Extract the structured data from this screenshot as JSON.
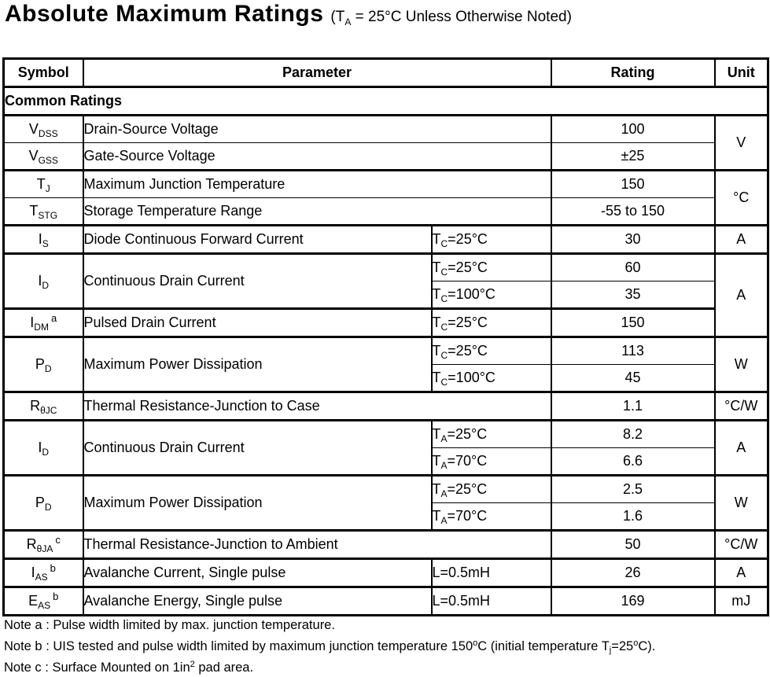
{
  "title": {
    "main": "Absolute Maximum Ratings",
    "note": [
      {
        "t": "(T"
      },
      {
        "sub": "A"
      },
      {
        "t": " = 25°C Unless Otherwise Noted)"
      }
    ]
  },
  "table": {
    "headers": {
      "symbol": "Symbol",
      "parameter": "Parameter",
      "rating": "Rating",
      "unit": "Unit"
    },
    "section": "Common Ratings",
    "rows": {
      "vdss": {
        "symbol": [
          {
            "t": "V"
          },
          {
            "sub": "DSS"
          }
        ],
        "parameter": "Drain-Source Voltage",
        "rating": "100",
        "unit": "V"
      },
      "vgss": {
        "symbol": [
          {
            "t": "V"
          },
          {
            "sub": "GSS"
          }
        ],
        "parameter": "Gate-Source Voltage",
        "rating": "±25"
      },
      "tj": {
        "symbol": [
          {
            "t": "T"
          },
          {
            "sub": "J"
          }
        ],
        "parameter": "Maximum Junction Temperature",
        "rating": "150",
        "unit": "°C"
      },
      "tstg": {
        "symbol": [
          {
            "t": "T"
          },
          {
            "sub": "STG"
          }
        ],
        "parameter": "Storage Temperature Range",
        "rating": "-55 to 150"
      },
      "is": {
        "symbol": [
          {
            "t": "I"
          },
          {
            "sub": "S"
          }
        ],
        "parameter": "Diode Continuous Forward Current",
        "condition": [
          {
            "t": "T"
          },
          {
            "sub": "C"
          },
          {
            "t": "=25°C"
          }
        ],
        "rating": "30",
        "unit": "A"
      },
      "id_tc25": {
        "symbol": [
          {
            "t": "I"
          },
          {
            "sub": "D"
          }
        ],
        "parameter": "Continuous Drain Current",
        "condition": [
          {
            "t": "T"
          },
          {
            "sub": "C"
          },
          {
            "t": "=25°C"
          }
        ],
        "rating": "60",
        "unit": "A"
      },
      "id_tc100": {
        "condition": [
          {
            "t": "T"
          },
          {
            "sub": "C"
          },
          {
            "t": "=100°C"
          }
        ],
        "rating": "35"
      },
      "idm": {
        "symbol": [
          {
            "t": "I"
          },
          {
            "sub": "DM"
          },
          {
            "sup": "a"
          }
        ],
        "parameter": "Pulsed Drain Current",
        "condition": [
          {
            "t": "T"
          },
          {
            "sub": "C"
          },
          {
            "t": "=25°C"
          }
        ],
        "rating": "150"
      },
      "pd_tc25": {
        "symbol": [
          {
            "t": "P"
          },
          {
            "sub": "D"
          }
        ],
        "parameter": "Maximum Power Dissipation",
        "condition": [
          {
            "t": "T"
          },
          {
            "sub": "C"
          },
          {
            "t": "=25°C"
          }
        ],
        "rating": "113",
        "unit": "W"
      },
      "pd_tc100": {
        "condition": [
          {
            "t": "T"
          },
          {
            "sub": "C"
          },
          {
            "t": "=100°C"
          }
        ],
        "rating": "45"
      },
      "rthjc": {
        "symbol": [
          {
            "t": "R"
          },
          {
            "sub": "θJC"
          }
        ],
        "parameter": "Thermal Resistance-Junction to Case",
        "rating": "1.1",
        "unit": "°C/W"
      },
      "id_ta25": {
        "symbol": [
          {
            "t": "I"
          },
          {
            "sub": "D"
          }
        ],
        "parameter": "Continuous Drain Current",
        "condition": [
          {
            "t": "T"
          },
          {
            "sub": "A"
          },
          {
            "t": "=25°C"
          }
        ],
        "rating": "8.2",
        "unit": "A"
      },
      "id_ta70": {
        "condition": [
          {
            "t": "T"
          },
          {
            "sub": "A"
          },
          {
            "t": "=70°C"
          }
        ],
        "rating": "6.6"
      },
      "pd_ta25": {
        "symbol": [
          {
            "t": "P"
          },
          {
            "sub": "D"
          }
        ],
        "parameter": "Maximum Power Dissipation",
        "condition": [
          {
            "t": "T"
          },
          {
            "sub": "A"
          },
          {
            "t": "=25°C"
          }
        ],
        "rating": "2.5",
        "unit": "W"
      },
      "pd_ta70": {
        "condition": [
          {
            "t": "T"
          },
          {
            "sub": "A"
          },
          {
            "t": "=70°C"
          }
        ],
        "rating": "1.6"
      },
      "rthja": {
        "symbol": [
          {
            "t": "R"
          },
          {
            "sub": "θJA"
          },
          {
            "sup": "c"
          }
        ],
        "parameter": "Thermal Resistance-Junction to Ambient",
        "rating": "50",
        "unit": "°C/W"
      },
      "ias": {
        "symbol": [
          {
            "t": "I"
          },
          {
            "sub": "AS"
          },
          {
            "sup": "b"
          }
        ],
        "parameter": "Avalanche Current, Single pulse",
        "condition": [
          {
            "t": "L=0.5mH"
          }
        ],
        "rating": "26",
        "unit": "A"
      },
      "eas": {
        "symbol": [
          {
            "t": "E"
          },
          {
            "sub": "AS"
          },
          {
            "sup": "b"
          }
        ],
        "parameter": "Avalanche Energy, Single pulse",
        "condition": [
          {
            "t": "L=0.5mH"
          }
        ],
        "rating": "169",
        "unit": "mJ"
      }
    }
  },
  "notes": {
    "a": [
      {
        "t": "Note a : Pulse width limited by max. junction temperature."
      }
    ],
    "b": [
      {
        "t": "Note b : UIS tested and pulse width limited by maximum junction temperature 150"
      },
      {
        "sup": "o"
      },
      {
        "t": "C (initial temperature T"
      },
      {
        "sub": "j"
      },
      {
        "t": "=25"
      },
      {
        "sup": "o"
      },
      {
        "t": "C)."
      }
    ],
    "c": [
      {
        "t": "Note c : Surface Mounted on 1in"
      },
      {
        "sup": "2"
      },
      {
        "t": " pad area."
      }
    ]
  }
}
